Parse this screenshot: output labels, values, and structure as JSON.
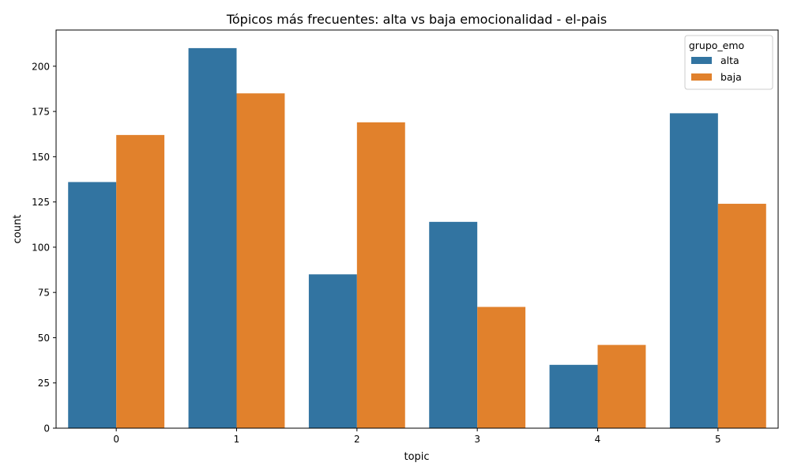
{
  "chart_data": {
    "type": "bar",
    "title": "Tópicos más frecuentes: alta vs baja emocionalidad - el-pais",
    "xlabel": "topic",
    "ylabel": "count",
    "categories": [
      "0",
      "1",
      "2",
      "3",
      "4",
      "5"
    ],
    "series": [
      {
        "name": "alta",
        "color": "#3274a1",
        "values": [
          136,
          210,
          85,
          114,
          35,
          174
        ]
      },
      {
        "name": "baja",
        "color": "#e1812c",
        "values": [
          162,
          185,
          169,
          67,
          46,
          124
        ]
      }
    ],
    "ylim": [
      0,
      220
    ],
    "yticks": [
      0,
      25,
      50,
      75,
      100,
      125,
      150,
      175,
      200
    ],
    "grid": false,
    "legend": {
      "title": "grupo_emo",
      "placement": "top-right"
    }
  }
}
